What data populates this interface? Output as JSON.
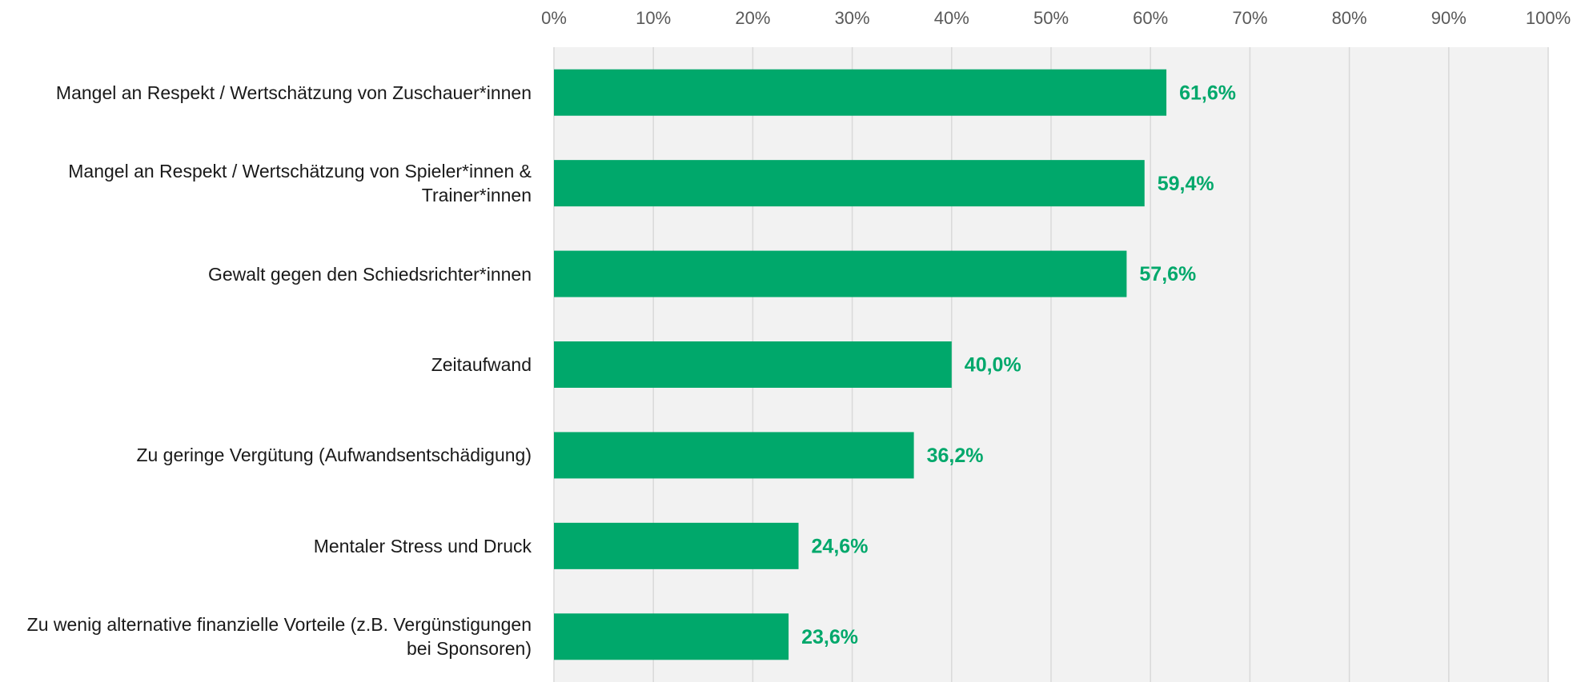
{
  "chart_data": {
    "type": "barh",
    "categories": [
      "Mangel an Respekt / Wertschätzung von Zuschauer*innen",
      "Mangel an Respekt / Wertschätzung von Spieler*innen & Trainer*innen",
      "Gewalt gegen den Schiedsrichter*innen",
      "Zeitaufwand",
      "Zu geringe Vergütung (Aufwandsentschädigung)",
      "Mentaler Stress und Druck",
      "Zu wenig alternative finanzielle Vorteile (z.B. Vergünstigungen bei Sponsoren)"
    ],
    "values": [
      61.6,
      59.4,
      57.6,
      40.0,
      36.2,
      24.6,
      23.6
    ],
    "value_labels": [
      "61,6%",
      "59,4%",
      "57,6%",
      "40,0%",
      "36,2%",
      "24,6%",
      "23,6%"
    ],
    "color": "#00a86b",
    "xlim": [
      0,
      100
    ],
    "xticks": [
      {
        "value": 0,
        "label": "0%"
      },
      {
        "value": 10,
        "label": "10%"
      },
      {
        "value": 20,
        "label": "20%"
      },
      {
        "value": 30,
        "label": "30%"
      },
      {
        "value": 40,
        "label": "40%"
      },
      {
        "value": 50,
        "label": "50%"
      },
      {
        "value": 60,
        "label": "60%"
      },
      {
        "value": 70,
        "label": "70%"
      },
      {
        "value": 80,
        "label": "80%"
      },
      {
        "value": 90,
        "label": "90%"
      },
      {
        "value": 100,
        "label": "100%"
      }
    ],
    "grid": true
  }
}
